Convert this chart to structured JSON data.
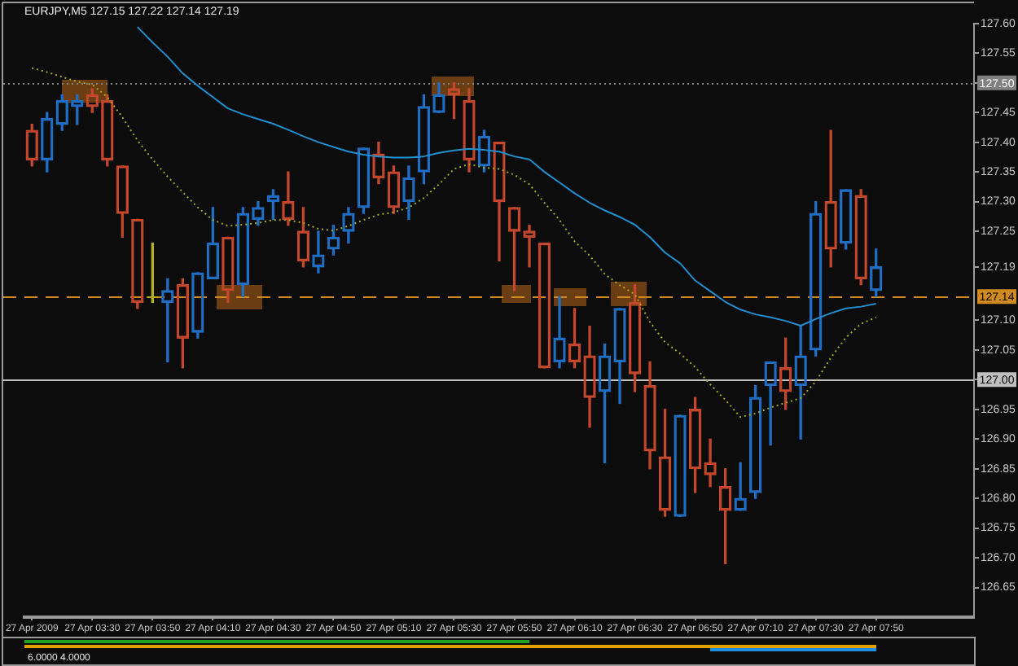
{
  "chart_data": {
    "type": "candlestick",
    "title": "EURJPY,M5 127.15 127.22 127.14 127.19",
    "categories": [
      "27 Apr 2009",
      null,
      null,
      null,
      "27 Apr 03:30",
      null,
      null,
      null,
      "27 Apr 03:50",
      null,
      null,
      null,
      "27 Apr 04:10",
      null,
      null,
      null,
      "27 Apr 04:30",
      null,
      null,
      null,
      "27 Apr 04:50",
      null,
      null,
      null,
      "27 Apr 05:10",
      null,
      null,
      null,
      "27 Apr 05:30",
      null,
      null,
      null,
      "27 Apr 05:50",
      null,
      null,
      null,
      "27 Apr 06:10",
      null,
      null,
      null,
      "27 Apr 06:30",
      null,
      null,
      null,
      "27 Apr 06:50",
      null,
      null,
      null,
      "27 Apr 07:10",
      null,
      null,
      null,
      "27 Apr 07:30",
      null,
      null,
      null,
      "27 Apr 07:50"
    ],
    "ohlc": [
      [
        127.42,
        127.43,
        127.36,
        127.37
      ],
      [
        127.37,
        127.45,
        127.35,
        127.44
      ],
      [
        127.43,
        127.48,
        127.42,
        127.47
      ],
      [
        127.46,
        127.48,
        127.43,
        127.47
      ],
      [
        127.48,
        127.49,
        127.45,
        127.46
      ],
      [
        127.47,
        127.48,
        127.36,
        127.37
      ],
      [
        127.36,
        127.36,
        127.24,
        127.28
      ],
      [
        127.27,
        127.27,
        127.12,
        127.13
      ],
      [
        127.14,
        127.23,
        127.13,
        127.14
      ],
      [
        127.13,
        127.17,
        127.03,
        127.15
      ],
      [
        127.16,
        127.17,
        127.02,
        127.07
      ],
      [
        127.08,
        127.18,
        127.07,
        127.18
      ],
      [
        127.17,
        127.29,
        127.17,
        127.23
      ],
      [
        127.24,
        127.24,
        127.13,
        127.15
      ],
      [
        127.16,
        127.29,
        127.14,
        127.28
      ],
      [
        127.27,
        127.3,
        127.26,
        127.29
      ],
      [
        127.3,
        127.32,
        127.27,
        127.31
      ],
      [
        127.3,
        127.35,
        127.26,
        127.27
      ],
      [
        127.25,
        127.29,
        127.19,
        127.2
      ],
      [
        127.19,
        127.25,
        127.18,
        127.21
      ],
      [
        127.22,
        127.26,
        127.21,
        127.24
      ],
      [
        127.25,
        127.29,
        127.23,
        127.28
      ],
      [
        127.29,
        127.39,
        127.28,
        127.39
      ],
      [
        127.38,
        127.4,
        127.33,
        127.34
      ],
      [
        127.35,
        127.36,
        127.28,
        127.29
      ],
      [
        127.3,
        127.36,
        127.27,
        127.34
      ],
      [
        127.35,
        127.48,
        127.33,
        127.46
      ],
      [
        127.45,
        127.5,
        127.45,
        127.48
      ],
      [
        127.49,
        127.5,
        127.44,
        127.48
      ],
      [
        127.47,
        127.49,
        127.35,
        127.37
      ],
      [
        127.36,
        127.42,
        127.35,
        127.41
      ],
      [
        127.4,
        127.4,
        127.2,
        127.3
      ],
      [
        127.29,
        127.29,
        127.15,
        127.25
      ],
      [
        127.25,
        127.26,
        127.19,
        127.24
      ],
      [
        127.23,
        127.23,
        127.02,
        127.02
      ],
      [
        127.03,
        127.14,
        127.02,
        127.07
      ],
      [
        127.06,
        127.12,
        127.02,
        127.03
      ],
      [
        127.04,
        127.09,
        126.92,
        126.97
      ],
      [
        126.98,
        127.06,
        126.86,
        127.04
      ],
      [
        127.03,
        127.12,
        126.96,
        127.12
      ],
      [
        127.13,
        127.16,
        126.98,
        127.01
      ],
      [
        126.99,
        127.03,
        126.85,
        126.88
      ],
      [
        126.87,
        126.95,
        126.77,
        126.78
      ],
      [
        126.77,
        126.94,
        126.77,
        126.94
      ],
      [
        126.95,
        126.97,
        126.81,
        126.85
      ],
      [
        126.86,
        126.9,
        126.82,
        126.84
      ],
      [
        126.82,
        126.85,
        126.69,
        126.78
      ],
      [
        126.78,
        126.86,
        126.78,
        126.8
      ],
      [
        126.81,
        126.99,
        126.8,
        126.97
      ],
      [
        126.99,
        127.03,
        126.89,
        127.03
      ],
      [
        127.02,
        127.07,
        126.95,
        126.98
      ],
      [
        126.99,
        127.09,
        126.9,
        127.04
      ],
      [
        127.05,
        127.3,
        127.04,
        127.28
      ],
      [
        127.3,
        127.42,
        127.19,
        127.22
      ],
      [
        127.23,
        127.32,
        127.22,
        127.32
      ],
      [
        127.31,
        127.32,
        127.16,
        127.17
      ],
      [
        127.15,
        127.22,
        127.14,
        127.19
      ]
    ],
    "colors": [
      "#c4472c",
      "#1f6ec4",
      "#1f6ec4",
      "#1f6ec4",
      "#c4472c",
      "#c4472c",
      "#c4472c",
      "#c4472c",
      "#b0b020",
      "#1f6ec4",
      "#c4472c",
      "#1f6ec4",
      "#1f6ec4",
      "#c4472c",
      "#1f6ec4",
      "#1f6ec4",
      "#1f6ec4",
      "#c4472c",
      "#c4472c",
      "#1f6ec4",
      "#1f6ec4",
      "#1f6ec4",
      "#1f6ec4",
      "#c4472c",
      "#c4472c",
      "#1f6ec4",
      "#1f6ec4",
      "#1f6ec4",
      "#c4472c",
      "#c4472c",
      "#1f6ec4",
      "#c4472c",
      "#c4472c",
      "#c4472c",
      "#c4472c",
      "#1f6ec4",
      "#c4472c",
      "#c4472c",
      "#1f6ec4",
      "#1f6ec4",
      "#c4472c",
      "#c4472c",
      "#c4472c",
      "#1f6ec4",
      "#c4472c",
      "#c4472c",
      "#c4472c",
      "#1f6ec4",
      "#1f6ec4",
      "#1f6ec4",
      "#c4472c",
      "#1f6ec4",
      "#1f6ec4",
      "#c4472c",
      "#1f6ec4",
      "#c4472c",
      "#1f6ec4"
    ],
    "series": [
      {
        "type": "line",
        "color": "#1f8fd0",
        "line_style": "solid",
        "values": [
          null,
          null,
          null,
          null,
          null,
          null,
          null,
          127.594,
          127.568,
          127.544,
          127.516,
          127.495,
          127.476,
          127.457,
          127.447,
          127.439,
          127.431,
          127.421,
          127.41,
          127.4,
          127.392,
          127.384,
          127.379,
          127.376,
          127.374,
          127.374,
          127.376,
          127.382,
          127.386,
          127.389,
          127.387,
          127.384,
          127.376,
          127.371,
          127.35,
          127.332,
          127.314,
          127.298,
          127.285,
          127.274,
          127.261,
          127.24,
          127.214,
          127.196,
          127.167,
          127.149,
          127.131,
          127.118,
          127.11,
          127.105,
          127.099,
          127.091,
          127.102,
          127.112,
          127.12,
          127.123,
          127.128
        ]
      },
      {
        "type": "line",
        "color": "#a8a818",
        "line_style": "dotted",
        "values": [
          127.525,
          127.518,
          127.51,
          127.502,
          127.497,
          127.476,
          127.442,
          127.403,
          127.371,
          127.342,
          127.316,
          127.29,
          127.269,
          127.259,
          127.261,
          127.264,
          127.269,
          127.269,
          127.264,
          127.254,
          127.251,
          127.259,
          127.269,
          127.278,
          127.282,
          127.29,
          127.306,
          127.329,
          127.355,
          127.363,
          127.357,
          127.355,
          127.345,
          127.329,
          127.298,
          127.269,
          127.233,
          127.209,
          127.178,
          127.159,
          127.144,
          127.097,
          127.063,
          127.044,
          127.021,
          126.992,
          126.966,
          126.937,
          126.943,
          126.953,
          126.961,
          126.969,
          126.997,
          127.037,
          127.071,
          127.094,
          127.105
        ]
      }
    ],
    "ylim": [
      126.6,
      127.6
    ],
    "yticks": [
      {
        "value": 126.65,
        "label": "126.65"
      },
      {
        "value": 126.7,
        "label": "126.70"
      },
      {
        "value": 126.75,
        "label": "126.75"
      },
      {
        "value": 126.8,
        "label": "126.80"
      },
      {
        "value": 126.85,
        "label": "126.85"
      },
      {
        "value": 126.9,
        "label": "126.90"
      },
      {
        "value": 126.95,
        "label": "126.95"
      },
      {
        "value": 127.0,
        "label": null
      },
      {
        "value": 127.05,
        "label": "127.05"
      },
      {
        "value": 127.1,
        "label": "127.10"
      },
      {
        "value": 127.19,
        "label": "127.19"
      },
      {
        "value": 127.25,
        "label": "127.25"
      },
      {
        "value": 127.3,
        "label": "127.30"
      },
      {
        "value": 127.35,
        "label": "127.35"
      },
      {
        "value": 127.4,
        "label": "127.40"
      },
      {
        "value": 127.45,
        "label": "127.45"
      },
      {
        "value": 127.5,
        "label": null
      },
      {
        "value": 127.55,
        "label": "127.55"
      },
      {
        "value": 127.6,
        "label": "127.60"
      }
    ],
    "ref_lines": [
      {
        "axis": "y",
        "value": 127.5,
        "label": "127.50",
        "color": "#808080",
        "line_style": "dotted"
      },
      {
        "axis": "y",
        "value": 127.14,
        "label": "127.14",
        "color": "#d08a20",
        "line_style": "dashed"
      },
      {
        "axis": "y",
        "value": 127.0,
        "label": "127.00",
        "color": "#c0c0c0",
        "line_style": "solid"
      }
    ],
    "annotations": [
      "6.0000 4.0000"
    ],
    "marker": "none"
  }
}
